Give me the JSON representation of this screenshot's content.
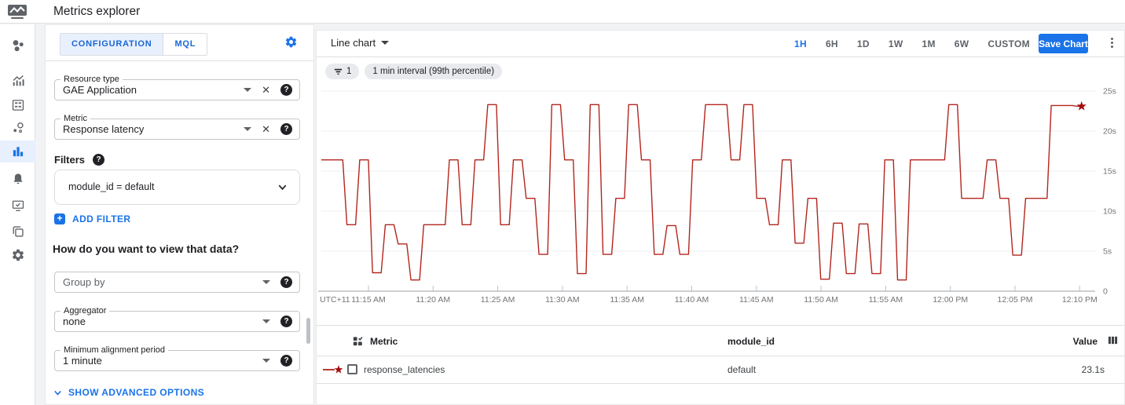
{
  "header": {
    "title": "Metrics explorer"
  },
  "sidebar": {
    "items": [
      {
        "name": "monitoring-overview-icon"
      },
      {
        "name": "dashboards-icon"
      },
      {
        "name": "dashboard-builder-icon"
      },
      {
        "name": "services-icon"
      },
      {
        "name": "metrics-explorer-icon",
        "selected": true
      },
      {
        "name": "alerting-icon"
      },
      {
        "name": "uptime-checks-icon"
      },
      {
        "name": "groups-icon"
      },
      {
        "name": "settings-icon"
      }
    ]
  },
  "config_panel": {
    "tabs": [
      {
        "label": "CONFIGURATION",
        "active": true
      },
      {
        "label": "MQL",
        "active": false
      }
    ],
    "resource_type": {
      "label": "Resource type",
      "value": "GAE Application"
    },
    "metric": {
      "label": "Metric",
      "value": "Response latency"
    },
    "filters_label": "Filters",
    "filter_chip": "module_id = default",
    "add_filter_label": "ADD FILTER",
    "view_heading": "How do you want to view that data?",
    "group_by": {
      "placeholder": "Group by"
    },
    "aggregator": {
      "label": "Aggregator",
      "value": "none"
    },
    "min_alignment_period": {
      "label": "Minimum alignment period",
      "value": "1 minute"
    },
    "advanced_options_label": "SHOW ADVANCED OPTIONS"
  },
  "chart_panel": {
    "chart_type_label": "Line chart",
    "filter_count_chip": "1",
    "interval_chip": "1 min interval (99th percentile)",
    "time_ranges": [
      "1H",
      "6H",
      "1D",
      "1W",
      "1M",
      "6W",
      "CUSTOM"
    ],
    "selected_range": "1H",
    "save_button_label": "Save Chart"
  },
  "chart_data": {
    "type": "line",
    "subtype": "step",
    "title": "Response latency, 1 min interval (99th percentile)",
    "xlabel": "",
    "ylabel": "",
    "unit": "seconds",
    "grid": true,
    "legend_position": "table-below",
    "ylim": [
      0,
      25.8
    ],
    "x_tick_labels": [
      "UTC+11",
      "11:15 AM",
      "11:20 AM",
      "11:25 AM",
      "11:30 AM",
      "11:35 AM",
      "11:40 AM",
      "11:45 AM",
      "11:50 AM",
      "11:55 AM",
      "12:00 PM",
      "12:05 PM",
      "12:10 PM"
    ],
    "y_tick_labels": [
      "25s",
      "20s",
      "15s",
      "10s",
      "5s",
      "0"
    ],
    "y_tick_values": [
      25,
      20,
      15,
      10,
      5,
      0
    ],
    "end_marker": "star",
    "latest_value": "23.1s",
    "series": [
      {
        "name": "response_latencies",
        "color": "#b3261e",
        "start_time": "11:11 AM",
        "point_interval_minutes": 1,
        "values": [
          16.4,
          16.4,
          8.3,
          16.4,
          2.3,
          8.3,
          5.9,
          1.4,
          8.3,
          8.3,
          16.4,
          8.3,
          16.4,
          23.3,
          8.3,
          16.4,
          11.6,
          4.6,
          23.3,
          16.4,
          2.2,
          23.3,
          4.6,
          11.6,
          23.3,
          16.4,
          4.6,
          8.2,
          4.6,
          16.4,
          23.3,
          23.3,
          16.4,
          23.3,
          11.6,
          8.3,
          16.4,
          6.0,
          11.6,
          1.5,
          8.5,
          2.2,
          8.4,
          2.2,
          16.4,
          1.4,
          16.4,
          16.4,
          16.4,
          23.3,
          11.6,
          11.6,
          16.4,
          11.6,
          4.5,
          11.6,
          11.6,
          23.2,
          23.2,
          23.1
        ]
      }
    ]
  },
  "table": {
    "headers": {
      "metric": "Metric",
      "module_id": "module_id",
      "value": "Value"
    },
    "rows": [
      {
        "metric": "response_latencies",
        "module_id": "default",
        "value": "23.1s",
        "series_color": "#b3261e"
      }
    ]
  },
  "colors": {
    "accent": "#1a73e8",
    "tab_active_bg": "#e8f0fe",
    "chip_bg": "#e8eaed",
    "line": "#b3261e",
    "star": "#a50e0e",
    "grid": "#eceff1",
    "text_primary": "#202124",
    "text_secondary": "#5f6368"
  }
}
